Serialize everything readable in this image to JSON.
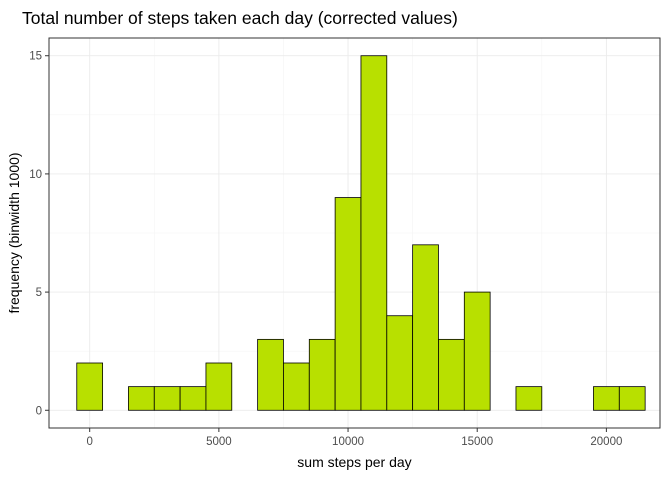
{
  "chart_data": {
    "type": "bar",
    "title": "Total number of steps taken each day (corrected values)",
    "xlabel": "sum steps per day",
    "ylabel": "frequency (binwidth 1000)",
    "binwidth": 1000,
    "bins": [
      {
        "x": 0,
        "count": 2
      },
      {
        "x": 1000,
        "count": 0
      },
      {
        "x": 2000,
        "count": 1
      },
      {
        "x": 3000,
        "count": 1
      },
      {
        "x": 4000,
        "count": 1
      },
      {
        "x": 5000,
        "count": 2
      },
      {
        "x": 6000,
        "count": 0
      },
      {
        "x": 7000,
        "count": 3
      },
      {
        "x": 8000,
        "count": 2
      },
      {
        "x": 9000,
        "count": 3
      },
      {
        "x": 10000,
        "count": 9
      },
      {
        "x": 11000,
        "count": 15
      },
      {
        "x": 12000,
        "count": 4
      },
      {
        "x": 13000,
        "count": 7
      },
      {
        "x": 14000,
        "count": 3
      },
      {
        "x": 15000,
        "count": 5
      },
      {
        "x": 16000,
        "count": 0
      },
      {
        "x": 17000,
        "count": 1
      },
      {
        "x": 18000,
        "count": 0
      },
      {
        "x": 19000,
        "count": 0
      },
      {
        "x": 20000,
        "count": 1
      },
      {
        "x": 21000,
        "count": 1
      }
    ],
    "x_ticks": [
      0,
      5000,
      10000,
      15000,
      20000
    ],
    "y_ticks": [
      0,
      5,
      10,
      15
    ],
    "xlim": [
      -1575,
      22075
    ],
    "ylim": [
      -0.75,
      15.75
    ],
    "bar_color": "#b8e000",
    "grid": true,
    "legend": "none"
  }
}
